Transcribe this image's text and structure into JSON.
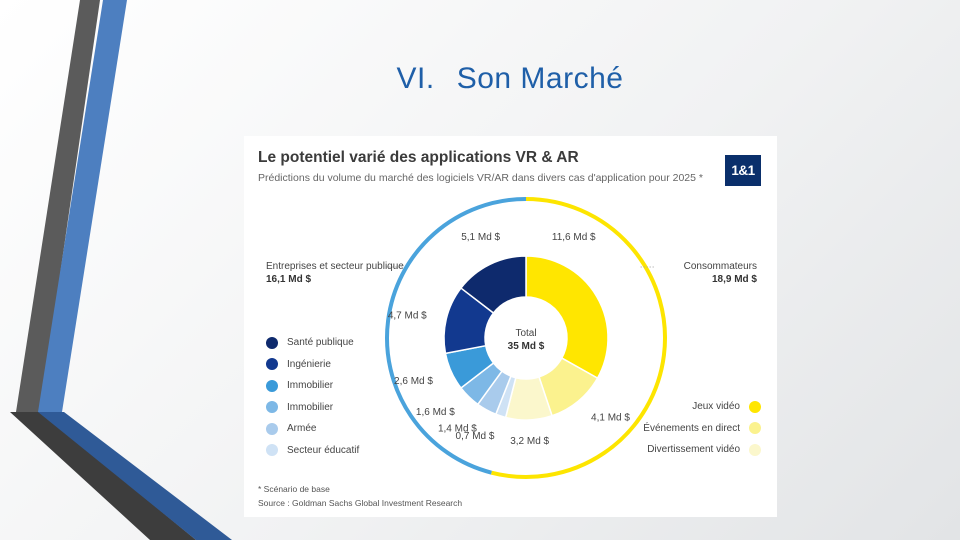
{
  "slide": {
    "number": "VI.",
    "title": "Son Marché"
  },
  "card": {
    "title": "Le potentiel varié des applications VR & AR",
    "subtitle": "Prédictions du volume du marché des logiciels VR/AR dans divers cas d'application pour 2025 *",
    "logo": "1&1",
    "footnote": "* Scénario de base",
    "source": "Source : Goldman Sachs Global Investment Research"
  },
  "colors": {
    "business_ring": "#4aa3dc",
    "consumer_ring": "#fde500",
    "connector": "#a8a8a8",
    "title_blue": "#1f5fa8"
  },
  "chart_data": {
    "type": "pie",
    "title": "Le potentiel varié des applications VR & AR",
    "unit": "Md $",
    "total": {
      "label": "Total",
      "value": "35 Md $"
    },
    "groups": [
      {
        "name": "Entreprises et secteur publique",
        "value": 16.1,
        "value_label": "16,1 Md $"
      },
      {
        "name": "Consommateurs",
        "value": 18.9,
        "value_label": "18,9 Md $"
      }
    ],
    "segments": [
      {
        "name": "Jeux vidéo",
        "group": "Consommateurs",
        "value": 11.6,
        "label": "11,6 Md $",
        "color": "#ffe600"
      },
      {
        "name": "Événements en direct",
        "group": "Consommateurs",
        "value": 4.1,
        "label": "4,1 Md $",
        "color": "#fbf28e"
      },
      {
        "name": "Divertissement vidéo",
        "group": "Consommateurs",
        "value": 3.2,
        "label": "3,2 Md $",
        "color": "#fbf7cc"
      },
      {
        "name": "Secteur éducatif",
        "group": "Entreprises et secteur publique",
        "value": 0.7,
        "label": "0,7 Md $",
        "color": "#cfe2f5"
      },
      {
        "name": "Armée",
        "group": "Entreprises et secteur publique",
        "value": 1.4,
        "label": "1,4 Md $",
        "color": "#a9cbec"
      },
      {
        "name": "Immobilier",
        "group": "Entreprises et secteur publique",
        "value": 1.6,
        "label": "1,6 Md $",
        "color": "#7db8e6"
      },
      {
        "name": "Immobilier",
        "group": "Entreprises et secteur publique",
        "value": 2.6,
        "label": "2,6 Md $",
        "color": "#3a9ad9"
      },
      {
        "name": "Ingénierie",
        "group": "Entreprises et secteur publique",
        "value": 4.7,
        "label": "4,7 Md $",
        "color": "#12398f"
      },
      {
        "name": "Santé publique",
        "group": "Entreprises et secteur publique",
        "value": 5.1,
        "label": "5,1 Md $",
        "color": "#0e2a6d"
      }
    ],
    "legend_left": [
      {
        "label": "Santé publique",
        "color": "#0e2a6d"
      },
      {
        "label": "Ingénierie",
        "color": "#12398f"
      },
      {
        "label": "Immobilier",
        "color": "#3a9ad9"
      },
      {
        "label": "Immobilier",
        "color": "#7db8e6"
      },
      {
        "label": "Armée",
        "color": "#a9cbec"
      },
      {
        "label": "Secteur éducatif",
        "color": "#cfe2f5"
      }
    ],
    "legend_right": [
      {
        "label": "Jeux vidéo",
        "color": "#ffe600"
      },
      {
        "label": "Événements en direct",
        "color": "#fbf28e"
      },
      {
        "label": "Divertissement vidéo",
        "color": "#fbf7cc"
      }
    ]
  }
}
